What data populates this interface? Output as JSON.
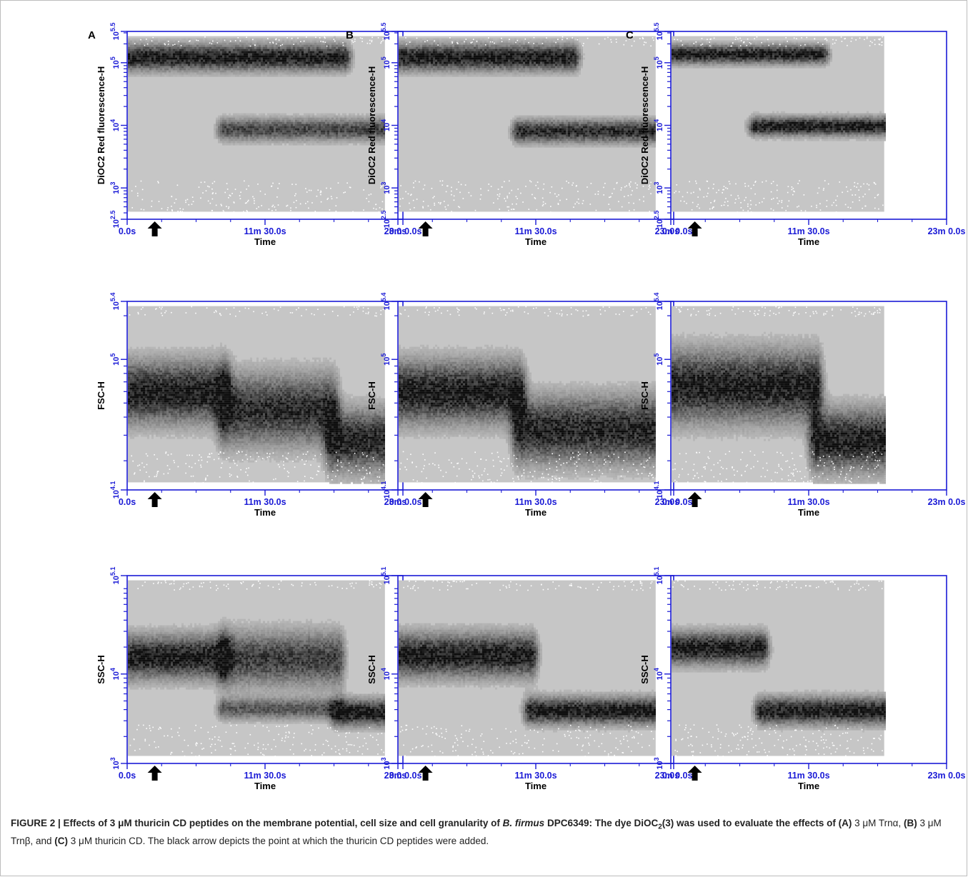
{
  "figure": {
    "caption": {
      "label": "FIGURE 2 | ",
      "bold_lead": "Effects of 3 μM thuricin CD peptides on the membrane potential, cell size and cell granularity of ",
      "bold_species": "B. firmus",
      "bold_mid": " DPC6349: The dye DiOC",
      "sub2": "2",
      "bold_tail": "(3) was used to evaluate the effects of ",
      "a_ref": "(A)",
      "a_text": " 3 μM Trnα, ",
      "b_ref": "(B)",
      "b_text": " 3 μM Trnβ, and ",
      "c_ref": "(C)",
      "c_text": " 3 μM thuricin CD. The black arrow depicts the point at which the thuricin CD peptides were added."
    }
  },
  "colors": {
    "axis": "#1a1ad6",
    "background_density": "#c6c6c6",
    "dense": "#111111",
    "arrow": "#000000"
  },
  "chart_data": [
    {
      "type": "heatmap",
      "panel": "A",
      "xlabel": "Time",
      "ylabel": "DiOC2 Red fluorescence-H",
      "x_ticks": [
        "0.0s",
        "11m 30.0s",
        "23m 0.0s"
      ],
      "x_range_min": [
        0,
        23
      ],
      "y_scale": "log10",
      "y_range_log": [
        2.5,
        5.5
      ],
      "y_ticks": [
        {
          "v": 2.5,
          "label": "10^2.5"
        },
        {
          "v": 3,
          "label": "10^3"
        },
        {
          "v": 4,
          "label": "10^4"
        },
        {
          "v": 5,
          "label": "10^5"
        },
        {
          "v": 5.5,
          "label": "10^5.5"
        }
      ],
      "data_end_min": 21.5,
      "arrow_time_min": 2.3,
      "populations": [
        {
          "t": [
            0,
            18
          ],
          "center_log": 5.1,
          "spread_log": 0.14,
          "intensity": 0.95
        },
        {
          "t": [
            8,
            21.5
          ],
          "center_log": 3.95,
          "spread_log": 0.12,
          "intensity": 0.7
        }
      ]
    },
    {
      "type": "heatmap",
      "panel": "B",
      "xlabel": "Time",
      "ylabel": "DiOC2 Red fluorescence-H",
      "x_ticks": [
        "0.0s",
        "11m 30.0s",
        "23m 0.0s"
      ],
      "x_range_min": [
        0,
        23
      ],
      "y_scale": "log10",
      "y_range_log": [
        2.5,
        5.5
      ],
      "y_ticks": [
        {
          "v": 2.5,
          "label": "10^2.5"
        },
        {
          "v": 3,
          "label": "10^3"
        },
        {
          "v": 4,
          "label": "10^4"
        },
        {
          "v": 5,
          "label": "10^5"
        },
        {
          "v": 5.5,
          "label": "10^5.5"
        }
      ],
      "data_end_min": 21.5,
      "arrow_time_min": 2.3,
      "populations": [
        {
          "t": [
            0,
            14.5
          ],
          "center_log": 5.1,
          "spread_log": 0.14,
          "intensity": 0.95
        },
        {
          "t": [
            10,
            21.5
          ],
          "center_log": 3.92,
          "spread_log": 0.12,
          "intensity": 0.85
        }
      ]
    },
    {
      "type": "heatmap",
      "panel": "C",
      "xlabel": "Time",
      "ylabel": "DiOC2 Red fluorescence-H",
      "x_ticks": [
        "0.0s",
        "11m 30.0s",
        "23m 0.0s"
      ],
      "x_range_min": [
        0,
        23
      ],
      "y_scale": "log10",
      "y_range_log": [
        2.5,
        5.5
      ],
      "y_ticks": [
        {
          "v": 2.5,
          "label": "10^2.5"
        },
        {
          "v": 3,
          "label": "10^3"
        },
        {
          "v": 4,
          "label": "10^4"
        },
        {
          "v": 5,
          "label": "10^5"
        },
        {
          "v": 5.5,
          "label": "10^5.5"
        }
      ],
      "data_end_min": 17.8,
      "arrow_time_min": 2.0,
      "populations": [
        {
          "t": [
            0,
            12.5
          ],
          "center_log": 5.15,
          "spread_log": 0.1,
          "intensity": 0.95
        },
        {
          "t": [
            7,
            17.8
          ],
          "center_log": 4.0,
          "spread_log": 0.1,
          "intensity": 0.95
        }
      ]
    },
    {
      "type": "heatmap",
      "panel": "A",
      "xlabel": "Time",
      "ylabel": "FSC-H",
      "x_ticks": [
        "0.0s",
        "11m 30.0s",
        "23m 0.0s"
      ],
      "x_range_min": [
        0,
        23
      ],
      "y_scale": "log10",
      "y_range_log": [
        4.1,
        5.4
      ],
      "y_ticks": [
        {
          "v": 4.1,
          "label": "10^4.1"
        },
        {
          "v": 5,
          "label": "10^5"
        },
        {
          "v": 5.4,
          "label": "10^5.4"
        }
      ],
      "data_end_min": 21.5,
      "arrow_time_min": 2.3,
      "populations": [
        {
          "t": [
            0,
            8
          ],
          "center_log": 4.78,
          "spread_log": 0.14,
          "intensity": 0.95
        },
        {
          "t": [
            8,
            17
          ],
          "center_log": 4.66,
          "spread_log": 0.16,
          "intensity": 0.85
        },
        {
          "t": [
            17,
            21.5
          ],
          "center_log": 4.45,
          "spread_log": 0.14,
          "intensity": 0.9
        }
      ]
    },
    {
      "type": "heatmap",
      "panel": "B",
      "xlabel": "Time",
      "ylabel": "FSC-H",
      "x_ticks": [
        "0.0s",
        "11m 30.0s",
        "23m 0.0s"
      ],
      "x_range_min": [
        0,
        23
      ],
      "y_scale": "log10",
      "y_range_log": [
        4.1,
        5.4
      ],
      "y_ticks": [
        {
          "v": 4.1,
          "label": "10^4.1"
        },
        {
          "v": 5,
          "label": "10^5"
        },
        {
          "v": 5.4,
          "label": "10^5.4"
        }
      ],
      "data_end_min": 21.5,
      "arrow_time_min": 2.3,
      "populations": [
        {
          "t": [
            0,
            10
          ],
          "center_log": 4.78,
          "spread_log": 0.14,
          "intensity": 0.95
        },
        {
          "t": [
            10,
            21.5
          ],
          "center_log": 4.52,
          "spread_log": 0.15,
          "intensity": 0.9
        }
      ]
    },
    {
      "type": "heatmap",
      "panel": "C",
      "xlabel": "Time",
      "ylabel": "FSC-H",
      "x_ticks": [
        "0.0s",
        "11m 30.0s",
        "23m 0.0s"
      ],
      "x_range_min": [
        0,
        23
      ],
      "y_scale": "log10",
      "y_range_log": [
        4.1,
        5.4
      ],
      "y_ticks": [
        {
          "v": 4.1,
          "label": "10^4.1"
        },
        {
          "v": 5,
          "label": "10^5"
        },
        {
          "v": 5.4,
          "label": "10^5.4"
        }
      ],
      "data_end_min": 17.8,
      "arrow_time_min": 2.0,
      "populations": [
        {
          "t": [
            0,
            12
          ],
          "center_log": 4.82,
          "spread_log": 0.16,
          "intensity": 0.95
        },
        {
          "t": [
            12,
            17.8
          ],
          "center_log": 4.45,
          "spread_log": 0.14,
          "intensity": 0.95
        }
      ]
    },
    {
      "type": "heatmap",
      "panel": "A",
      "xlabel": "Time",
      "ylabel": "SSC-H",
      "x_ticks": [
        "0.0s",
        "11m 30.0s",
        "23m 0.0s"
      ],
      "x_range_min": [
        0,
        23
      ],
      "y_scale": "log10",
      "y_range_log": [
        3,
        5.1
      ],
      "y_ticks": [
        {
          "v": 3,
          "label": "10^3"
        },
        {
          "v": 4,
          "label": "10^4"
        },
        {
          "v": 5.1,
          "label": "10^5.1"
        }
      ],
      "data_end_min": 21.5,
      "arrow_time_min": 2.3,
      "populations": [
        {
          "t": [
            0,
            8
          ],
          "center_log": 4.2,
          "spread_log": 0.16,
          "intensity": 0.95
        },
        {
          "t": [
            8,
            17.5
          ],
          "center_log": 4.18,
          "spread_log": 0.2,
          "intensity": 0.75
        },
        {
          "t": [
            8,
            17.5
          ],
          "center_log": 3.62,
          "spread_log": 0.08,
          "intensity": 0.6
        },
        {
          "t": [
            17.5,
            21.5
          ],
          "center_log": 3.58,
          "spread_log": 0.1,
          "intensity": 0.95
        }
      ]
    },
    {
      "type": "heatmap",
      "panel": "B",
      "xlabel": "Time",
      "ylabel": "SSC-H",
      "x_ticks": [
        "0.0s",
        "11m 30.0s",
        "23m 0.0s"
      ],
      "x_range_min": [
        0,
        23
      ],
      "y_scale": "log10",
      "y_range_log": [
        3,
        5.1
      ],
      "y_ticks": [
        {
          "v": 3,
          "label": "10^3"
        },
        {
          "v": 4,
          "label": "10^4"
        },
        {
          "v": 5.1,
          "label": "10^5.1"
        }
      ],
      "data_end_min": 21.5,
      "arrow_time_min": 2.3,
      "populations": [
        {
          "t": [
            0,
            11
          ],
          "center_log": 4.22,
          "spread_log": 0.16,
          "intensity": 0.95
        },
        {
          "t": [
            11,
            21.5
          ],
          "center_log": 3.6,
          "spread_log": 0.1,
          "intensity": 0.95
        }
      ]
    },
    {
      "type": "heatmap",
      "panel": "C",
      "xlabel": "Time",
      "ylabel": "SSC-H",
      "x_ticks": [
        "0.0s",
        "11m 30.0s",
        "23m 0.0s"
      ],
      "x_range_min": [
        0,
        23
      ],
      "y_scale": "log10",
      "y_range_log": [
        3,
        5.1
      ],
      "y_ticks": [
        {
          "v": 3,
          "label": "10^3"
        },
        {
          "v": 4,
          "label": "10^4"
        },
        {
          "v": 5.1,
          "label": "10^5.1"
        }
      ],
      "data_end_min": 17.8,
      "arrow_time_min": 2.0,
      "populations": [
        {
          "t": [
            0,
            7.5
          ],
          "center_log": 4.3,
          "spread_log": 0.12,
          "intensity": 0.95
        },
        {
          "t": [
            7.5,
            17.8
          ],
          "center_log": 3.6,
          "spread_log": 0.1,
          "intensity": 0.95
        }
      ]
    }
  ]
}
